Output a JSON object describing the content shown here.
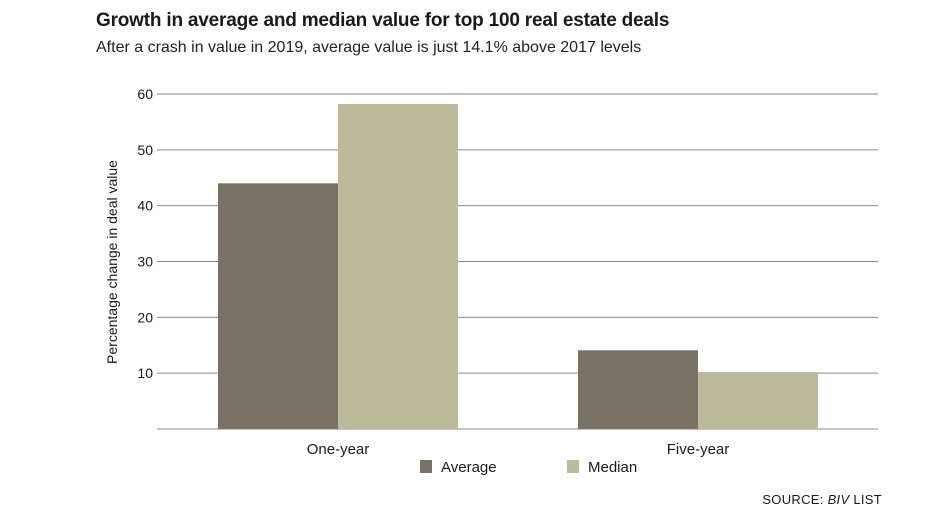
{
  "colors": {
    "average": "#7a7167",
    "median": "#bdba9b",
    "grid": "#8a8a8a"
  },
  "chart_data": {
    "type": "bar",
    "title": "Growth in average and median value for top 100 real estate deals",
    "subtitle": "After a crash in value in 2019, average value is just 14.1% above 2017 levels",
    "xlabel": "",
    "ylabel": "Percentage change in deal value",
    "categories": [
      "One-year",
      "Five-year"
    ],
    "series": [
      {
        "name": "Average",
        "values": [
          44,
          14.1
        ]
      },
      {
        "name": "Median",
        "values": [
          58.2,
          10.2
        ]
      }
    ],
    "ylim": [
      0,
      60
    ],
    "yticks": [
      10,
      20,
      30,
      40,
      50,
      60
    ],
    "grid": true,
    "legend_position": "bottom-center"
  },
  "source": {
    "prefix": "SOURCE: ",
    "name": "BIV",
    "suffix": " LIST"
  }
}
